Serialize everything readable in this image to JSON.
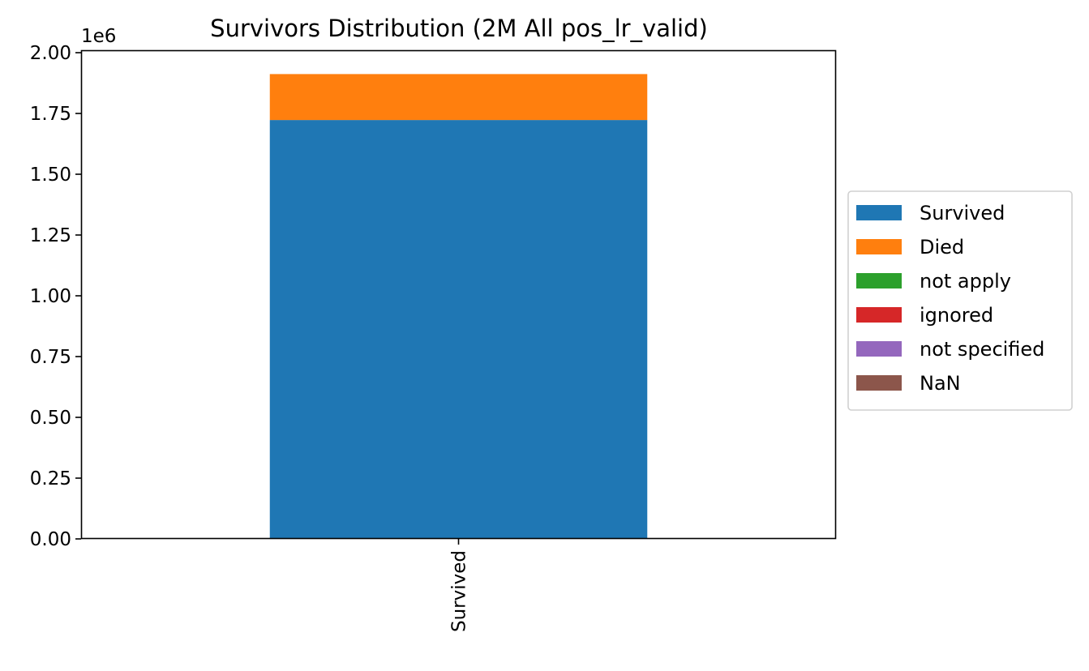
{
  "chart_data": {
    "type": "bar",
    "stacked": true,
    "title": "Survivors Distribution (2M All pos_lr_valid)",
    "xlabel": "",
    "ylabel": "",
    "categories": [
      "Survived"
    ],
    "y_offset_label": "1e6",
    "ylim": [
      0,
      2010000
    ],
    "yticks": [
      0,
      250000,
      500000,
      750000,
      1000000,
      1250000,
      1500000,
      1750000,
      2000000
    ],
    "ytick_labels": [
      "0.00",
      "0.25",
      "0.50",
      "0.75",
      "1.00",
      "1.25",
      "1.50",
      "1.75",
      "2.00"
    ],
    "grid": false,
    "legend_position": "center-right-outside",
    "series": [
      {
        "name": "Survived",
        "values": [
          1723000
        ],
        "color": "#1f77b4"
      },
      {
        "name": "Died",
        "values": [
          189000
        ],
        "color": "#ff7f0e"
      },
      {
        "name": "not apply",
        "values": [
          0
        ],
        "color": "#2ca02c"
      },
      {
        "name": "ignored",
        "values": [
          0
        ],
        "color": "#d62728"
      },
      {
        "name": "not specified",
        "values": [
          0
        ],
        "color": "#9467bd"
      },
      {
        "name": "NaN",
        "values": [
          0
        ],
        "color": "#8c564b"
      }
    ]
  }
}
